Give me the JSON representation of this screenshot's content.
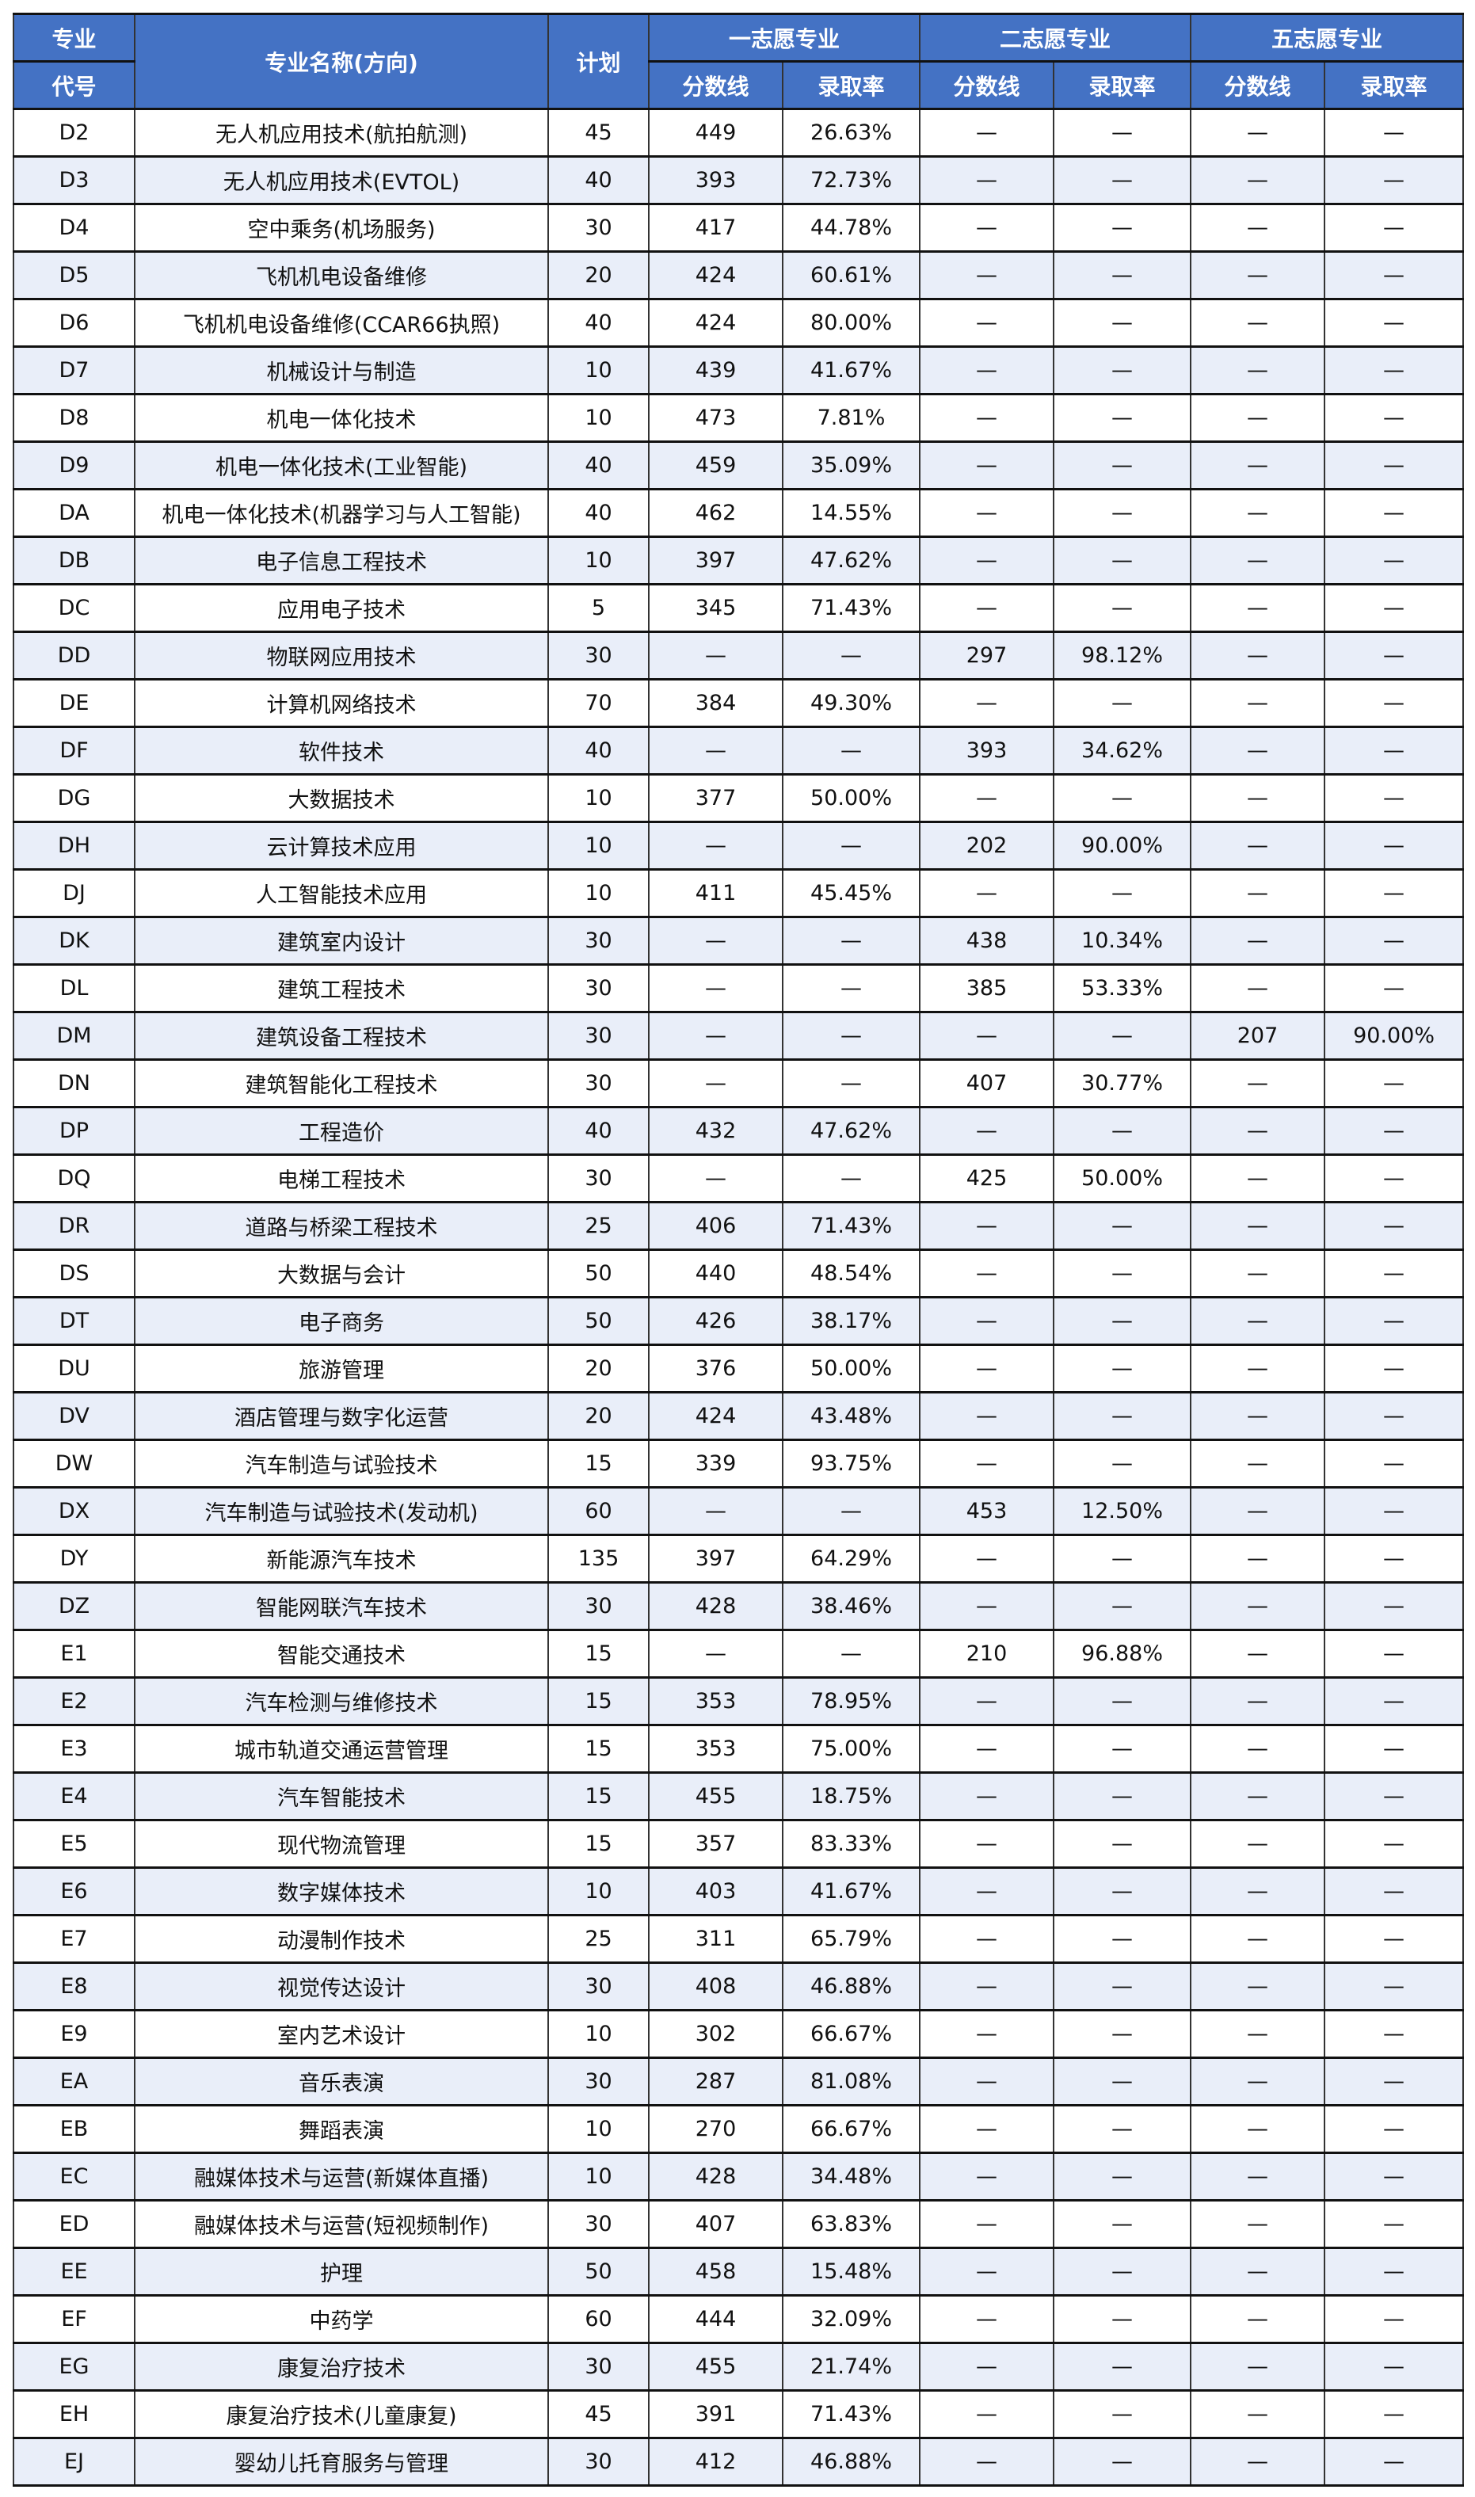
{
  "header": {
    "code_top": "专业",
    "code_bottom": "代号",
    "name": "专业名称(方向)",
    "plan": "计划",
    "first_choice": "一志愿专业",
    "second_choice": "二志愿专业",
    "fifth_choice": "五志愿专业",
    "score": "分数线",
    "rate": "录取率"
  },
  "colors": {
    "header_bg": "#4472C4",
    "stripe": "#E9EEF9"
  },
  "rows": [
    [
      "D2",
      "无人机应用技术(航拍航测)",
      "45",
      "449",
      "26.63%",
      "—",
      "—",
      "—",
      "—"
    ],
    [
      "D3",
      "无人机应用技术(EVTOL)",
      "40",
      "393",
      "72.73%",
      "—",
      "—",
      "—",
      "—"
    ],
    [
      "D4",
      "空中乘务(机场服务)",
      "30",
      "417",
      "44.78%",
      "—",
      "—",
      "—",
      "—"
    ],
    [
      "D5",
      "飞机机电设备维修",
      "20",
      "424",
      "60.61%",
      "—",
      "—",
      "—",
      "—"
    ],
    [
      "D6",
      "飞机机电设备维修(CCAR66执照)",
      "40",
      "424",
      "80.00%",
      "—",
      "—",
      "—",
      "—"
    ],
    [
      "D7",
      "机械设计与制造",
      "10",
      "439",
      "41.67%",
      "—",
      "—",
      "—",
      "—"
    ],
    [
      "D8",
      "机电一体化技术",
      "10",
      "473",
      "7.81%",
      "—",
      "—",
      "—",
      "—"
    ],
    [
      "D9",
      "机电一体化技术(工业智能)",
      "40",
      "459",
      "35.09%",
      "—",
      "—",
      "—",
      "—"
    ],
    [
      "DA",
      "机电一体化技术(机器学习与人工智能)",
      "40",
      "462",
      "14.55%",
      "—",
      "—",
      "—",
      "—"
    ],
    [
      "DB",
      "电子信息工程技术",
      "10",
      "397",
      "47.62%",
      "—",
      "—",
      "—",
      "—"
    ],
    [
      "DC",
      "应用电子技术",
      "5",
      "345",
      "71.43%",
      "—",
      "—",
      "—",
      "—"
    ],
    [
      "DD",
      "物联网应用技术",
      "30",
      "—",
      "—",
      "297",
      "98.12%",
      "—",
      "—"
    ],
    [
      "DE",
      "计算机网络技术",
      "70",
      "384",
      "49.30%",
      "—",
      "—",
      "—",
      "—"
    ],
    [
      "DF",
      "软件技术",
      "40",
      "—",
      "—",
      "393",
      "34.62%",
      "—",
      "—"
    ],
    [
      "DG",
      "大数据技术",
      "10",
      "377",
      "50.00%",
      "—",
      "—",
      "—",
      "—"
    ],
    [
      "DH",
      "云计算技术应用",
      "10",
      "—",
      "—",
      "202",
      "90.00%",
      "—",
      "—"
    ],
    [
      "DJ",
      "人工智能技术应用",
      "10",
      "411",
      "45.45%",
      "—",
      "—",
      "—",
      "—"
    ],
    [
      "DK",
      "建筑室内设计",
      "30",
      "—",
      "—",
      "438",
      "10.34%",
      "—",
      "—"
    ],
    [
      "DL",
      "建筑工程技术",
      "30",
      "—",
      "—",
      "385",
      "53.33%",
      "—",
      "—"
    ],
    [
      "DM",
      "建筑设备工程技术",
      "30",
      "—",
      "—",
      "—",
      "—",
      "207",
      "90.00%"
    ],
    [
      "DN",
      "建筑智能化工程技术",
      "30",
      "—",
      "—",
      "407",
      "30.77%",
      "—",
      "—"
    ],
    [
      "DP",
      "工程造价",
      "40",
      "432",
      "47.62%",
      "—",
      "—",
      "—",
      "—"
    ],
    [
      "DQ",
      "电梯工程技术",
      "30",
      "—",
      "—",
      "425",
      "50.00%",
      "—",
      "—"
    ],
    [
      "DR",
      "道路与桥梁工程技术",
      "25",
      "406",
      "71.43%",
      "—",
      "—",
      "—",
      "—"
    ],
    [
      "DS",
      "大数据与会计",
      "50",
      "440",
      "48.54%",
      "—",
      "—",
      "—",
      "—"
    ],
    [
      "DT",
      "电子商务",
      "50",
      "426",
      "38.17%",
      "—",
      "—",
      "—",
      "—"
    ],
    [
      "DU",
      "旅游管理",
      "20",
      "376",
      "50.00%",
      "—",
      "—",
      "—",
      "—"
    ],
    [
      "DV",
      "酒店管理与数字化运营",
      "20",
      "424",
      "43.48%",
      "—",
      "—",
      "—",
      "—"
    ],
    [
      "DW",
      "汽车制造与试验技术",
      "15",
      "339",
      "93.75%",
      "—",
      "—",
      "—",
      "—"
    ],
    [
      "DX",
      "汽车制造与试验技术(发动机)",
      "60",
      "—",
      "—",
      "453",
      "12.50%",
      "—",
      "—"
    ],
    [
      "DY",
      "新能源汽车技术",
      "135",
      "397",
      "64.29%",
      "—",
      "—",
      "—",
      "—"
    ],
    [
      "DZ",
      "智能网联汽车技术",
      "30",
      "428",
      "38.46%",
      "—",
      "—",
      "—",
      "—"
    ],
    [
      "E1",
      "智能交通技术",
      "15",
      "—",
      "—",
      "210",
      "96.88%",
      "—",
      "—"
    ],
    [
      "E2",
      "汽车检测与维修技术",
      "15",
      "353",
      "78.95%",
      "—",
      "—",
      "—",
      "—"
    ],
    [
      "E3",
      "城市轨道交通运营管理",
      "15",
      "353",
      "75.00%",
      "—",
      "—",
      "—",
      "—"
    ],
    [
      "E4",
      "汽车智能技术",
      "15",
      "455",
      "18.75%",
      "—",
      "—",
      "—",
      "—"
    ],
    [
      "E5",
      "现代物流管理",
      "15",
      "357",
      "83.33%",
      "—",
      "—",
      "—",
      "—"
    ],
    [
      "E6",
      "数字媒体技术",
      "10",
      "403",
      "41.67%",
      "—",
      "—",
      "—",
      "—"
    ],
    [
      "E7",
      "动漫制作技术",
      "25",
      "311",
      "65.79%",
      "—",
      "—",
      "—",
      "—"
    ],
    [
      "E8",
      "视觉传达设计",
      "30",
      "408",
      "46.88%",
      "—",
      "—",
      "—",
      "—"
    ],
    [
      "E9",
      "室内艺术设计",
      "10",
      "302",
      "66.67%",
      "—",
      "—",
      "—",
      "—"
    ],
    [
      "EA",
      "音乐表演",
      "30",
      "287",
      "81.08%",
      "—",
      "—",
      "—",
      "—"
    ],
    [
      "EB",
      "舞蹈表演",
      "10",
      "270",
      "66.67%",
      "—",
      "—",
      "—",
      "—"
    ],
    [
      "EC",
      "融媒体技术与运营(新媒体直播)",
      "10",
      "428",
      "34.48%",
      "—",
      "—",
      "—",
      "—"
    ],
    [
      "ED",
      "融媒体技术与运营(短视频制作)",
      "30",
      "407",
      "63.83%",
      "—",
      "—",
      "—",
      "—"
    ],
    [
      "EE",
      "护理",
      "50",
      "458",
      "15.48%",
      "—",
      "—",
      "—",
      "—"
    ],
    [
      "EF",
      "中药学",
      "60",
      "444",
      "32.09%",
      "—",
      "—",
      "—",
      "—"
    ],
    [
      "EG",
      "康复治疗技术",
      "30",
      "455",
      "21.74%",
      "—",
      "—",
      "—",
      "—"
    ],
    [
      "EH",
      "康复治疗技术(儿童康复)",
      "45",
      "391",
      "71.43%",
      "—",
      "—",
      "—",
      "—"
    ],
    [
      "EJ",
      "婴幼儿托育服务与管理",
      "30",
      "412",
      "46.88%",
      "—",
      "—",
      "—",
      "—"
    ]
  ]
}
